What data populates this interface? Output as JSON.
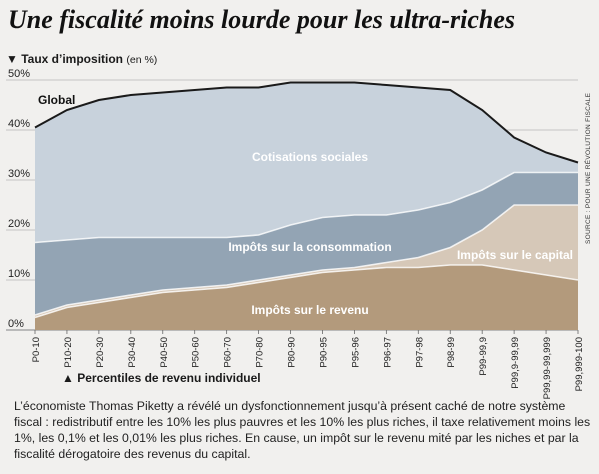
{
  "title": "Une fiscalité moins lourde pour les ultra-riches",
  "y_axis_title": "Taux d’imposition",
  "y_axis_unit": "(en %)",
  "x_axis_title": "Percentiles de revenu individuel",
  "source": "SOURCE : POUR UNE RÉVOLUTION FISCALE",
  "caption": "L’économiste Thomas Piketty a révélé un dysfonctionnement jusqu’à présent caché de notre système fiscal : redistributif entre les 10% les plus pauvres et les 10% les plus riches, il taxe relativement moins les 1%, les 0,1% et les 0,01% les plus riches. En cause, un impôt sur le revenu mité par les niches et par la fiscalité dérogatoire des revenus du capital.",
  "colors": {
    "revenu": "#b39a7c",
    "capital": "#d6c8b8",
    "consommation": "#93a4b4",
    "cotisations": "#c8d2dc",
    "global_line": "#1a1a1a"
  },
  "chart_data": {
    "type": "area",
    "stacked": true,
    "categories": [
      "P0-10",
      "P10-20",
      "P20-30",
      "P30-40",
      "P40-50",
      "P50-60",
      "P60-70",
      "P70-80",
      "P80-90",
      "P90-95",
      "P95-96",
      "P96-97",
      "P97-98",
      "P98-99",
      "P99-99,9",
      "P99,9-99,99",
      "P99,99-99,999",
      "P99,999-100"
    ],
    "ylim": [
      0,
      50
    ],
    "yticks": [
      "0%",
      "10%",
      "20%",
      "30%",
      "40%",
      "50%"
    ],
    "grid": true,
    "series": [
      {
        "name": "Impôts sur le revenu",
        "color_key": "revenu",
        "values": [
          2.5,
          4.5,
          5.5,
          6.5,
          7.5,
          8.0,
          8.5,
          9.5,
          10.5,
          11.5,
          12.0,
          12.5,
          12.5,
          13.0,
          13.0,
          12.0,
          11.0,
          10.0
        ]
      },
      {
        "name": "Impôts sur le capital",
        "color_key": "capital",
        "values": [
          0.5,
          0.5,
          0.5,
          0.5,
          0.5,
          0.5,
          0.5,
          0.5,
          0.5,
          0.5,
          0.5,
          1.0,
          2.0,
          3.5,
          7.0,
          13.0,
          14.0,
          15.0
        ]
      },
      {
        "name": "Impôts sur la consommation",
        "color_key": "consommation",
        "values": [
          14.5,
          13.0,
          12.5,
          11.5,
          10.5,
          10.0,
          9.5,
          9.0,
          10.0,
          10.5,
          10.5,
          9.5,
          9.5,
          9.0,
          8.0,
          6.5,
          6.5,
          6.5
        ]
      },
      {
        "name": "Cotisations sociales",
        "color_key": "cotisations",
        "values": [
          23.0,
          26.0,
          27.5,
          28.5,
          29.0,
          29.5,
          30.0,
          29.5,
          28.5,
          27.0,
          26.5,
          26.0,
          24.5,
          22.5,
          16.0,
          7.0,
          4.0,
          2.0
        ]
      }
    ],
    "global": {
      "name": "Global",
      "values": [
        40.5,
        44.0,
        46.0,
        47.0,
        47.5,
        48.0,
        48.5,
        48.5,
        49.5,
        49.5,
        49.5,
        49.0,
        48.5,
        48.0,
        44.0,
        38.5,
        35.5,
        33.5
      ]
    }
  }
}
